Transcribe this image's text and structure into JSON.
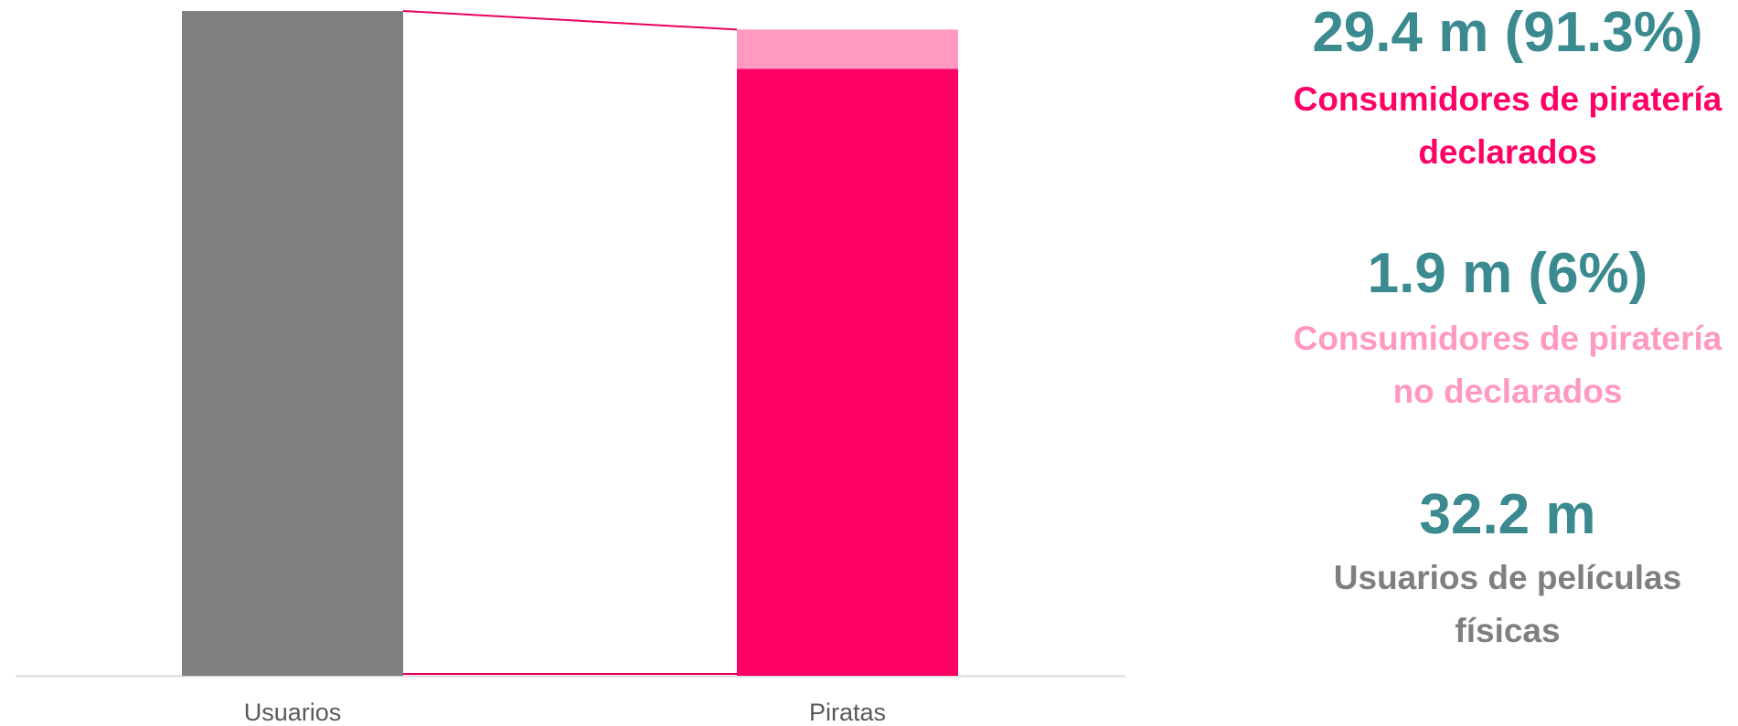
{
  "chart_data": {
    "type": "stacked_bar",
    "categories": [
      "Usuarios",
      "Piratas"
    ],
    "series": [
      {
        "name": "Usuarios de películas físicas",
        "color": "#7f7f7f",
        "values": [
          32.2,
          null
        ],
        "value_labels": [
          "32.2 m",
          null
        ]
      },
      {
        "name": "Consumidores de piratería declarados",
        "color": "#ff0066",
        "values": [
          null,
          29.4
        ],
        "value_labels": [
          null,
          "29.4 m (91.3%)"
        ]
      },
      {
        "name": "Consumidores de piratería no declarados",
        "color": "#ff99c2",
        "values": [
          null,
          1.9
        ],
        "value_labels": [
          null,
          "1.9 m (6%)"
        ]
      }
    ],
    "label_color": "#3a8a8f",
    "connector_color": "#e8005c"
  }
}
